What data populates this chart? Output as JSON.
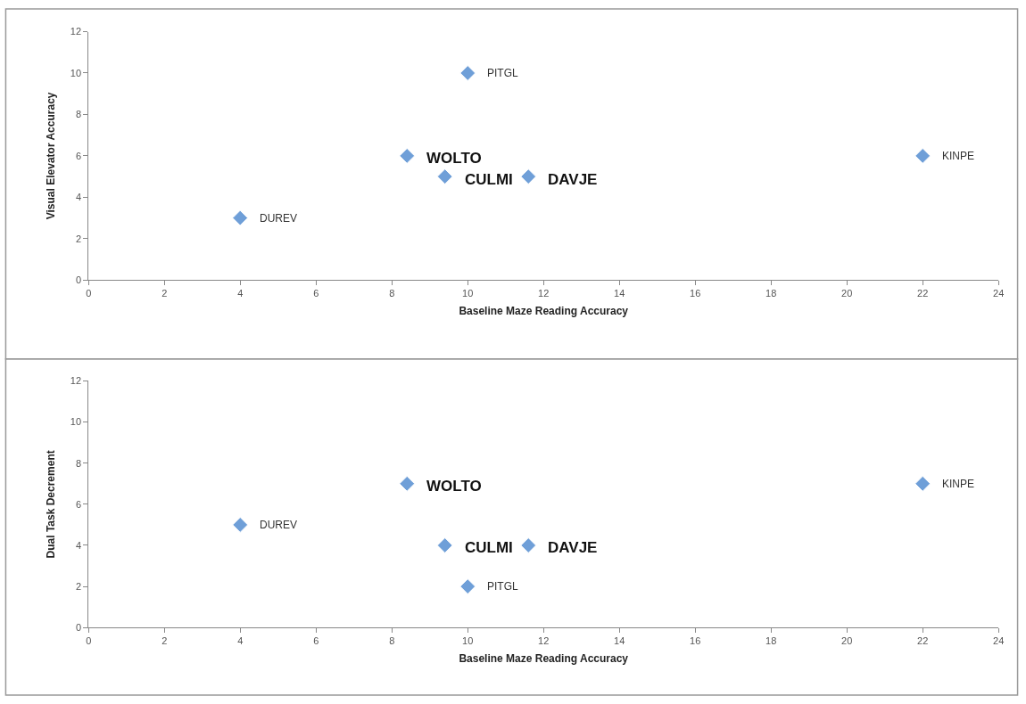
{
  "chart_data": [
    {
      "type": "scatter",
      "xlabel": "Baseline Maze Reading Accuracy",
      "ylabel": "Visual Elevator Accuracy",
      "x": [
        4,
        8.4,
        9.4,
        10,
        11.6,
        22
      ],
      "values": [
        3,
        6,
        5,
        10,
        5,
        6
      ],
      "color": "#6f9fd8",
      "marker": "diamond",
      "xlim": [
        0,
        24
      ],
      "xticks": [
        0,
        2,
        4,
        6,
        8,
        10,
        12,
        14,
        16,
        18,
        20,
        22,
        24
      ],
      "ylim": [
        0,
        12
      ],
      "yticks": [
        0,
        2,
        4,
        6,
        8,
        10,
        12
      ],
      "legend": false,
      "annotations": [
        {
          "text": "DUREV",
          "x": 4,
          "y": 3
        },
        {
          "text": "WOLTO",
          "x": 8.4,
          "y": 6
        },
        {
          "text": "CULMI",
          "x": 9.4,
          "y": 5
        },
        {
          "text": "PITGL",
          "x": 10,
          "y": 10
        },
        {
          "text": "DAVJE",
          "x": 11.6,
          "y": 5
        },
        {
          "text": "KINPE",
          "x": 22,
          "y": 6
        }
      ]
    },
    {
      "type": "scatter",
      "xlabel": "Baseline Maze Reading Accuracy",
      "ylabel": "Dual Task Decrement",
      "x": [
        4,
        8.4,
        9.4,
        10,
        11.6,
        22
      ],
      "values": [
        5,
        7,
        4,
        2,
        4,
        7
      ],
      "color": "#6f9fd8",
      "marker": "diamond",
      "xlim": [
        0,
        24
      ],
      "xticks": [
        0,
        2,
        4,
        6,
        8,
        10,
        12,
        14,
        16,
        18,
        20,
        22,
        24
      ],
      "ylim": [
        0,
        12
      ],
      "yticks": [
        0,
        2,
        4,
        6,
        8,
        10,
        12
      ],
      "legend": false,
      "annotations": [
        {
          "text": "DUREV",
          "x": 4,
          "y": 5
        },
        {
          "text": "WOLTO",
          "x": 8.4,
          "y": 7
        },
        {
          "text": "CULMI",
          "x": 9.4,
          "y": 4
        },
        {
          "text": "PITGL",
          "x": 10,
          "y": 2
        },
        {
          "text": "DAVJE",
          "x": 11.6,
          "y": 4
        },
        {
          "text": "KINPE",
          "x": 22,
          "y": 7
        }
      ]
    }
  ]
}
